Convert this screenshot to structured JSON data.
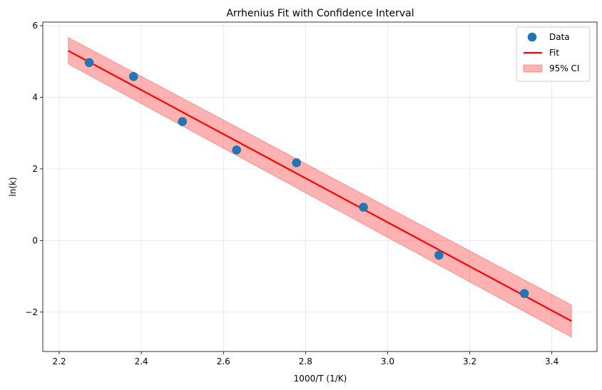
{
  "chart_data": {
    "type": "scatter",
    "title": "Arrhenius Fit with Confidence Interval",
    "xlabel": "1000/T (1/K)",
    "ylabel": "ln(k)",
    "xlim": [
      2.16,
      3.51
    ],
    "ylim": [
      -3.1,
      6.1
    ],
    "xticks": [
      2.2,
      2.4,
      2.6,
      2.8,
      3.0,
      3.2,
      3.4
    ],
    "xtick_labels": [
      "2.2",
      "2.4",
      "2.6",
      "2.8",
      "3.0",
      "3.2",
      "3.4"
    ],
    "yticks": [
      -2,
      0,
      2,
      4,
      6
    ],
    "ytick_labels": [
      "−2",
      "0",
      "2",
      "4",
      "6"
    ],
    "grid": true,
    "legend_position": "top-right",
    "series": [
      {
        "name": "Data",
        "kind": "scatter",
        "color": "#1f77b4",
        "x": [
          2.273,
          2.381,
          2.5,
          2.632,
          2.778,
          2.941,
          3.125,
          3.333
        ],
        "y": [
          4.97,
          4.58,
          3.32,
          2.53,
          2.17,
          0.93,
          -0.41,
          -1.48
        ]
      },
      {
        "name": "Fit",
        "kind": "line",
        "color": "#ff0000",
        "x": [
          2.222,
          3.448
        ],
        "y": [
          5.3,
          -2.25
        ]
      },
      {
        "name": "95% CI",
        "kind": "band",
        "color": "#ff0000",
        "x": [
          2.222,
          3.448
        ],
        "y_lower": [
          4.93,
          -2.7
        ],
        "y_upper": [
          5.67,
          -1.8
        ]
      }
    ]
  }
}
